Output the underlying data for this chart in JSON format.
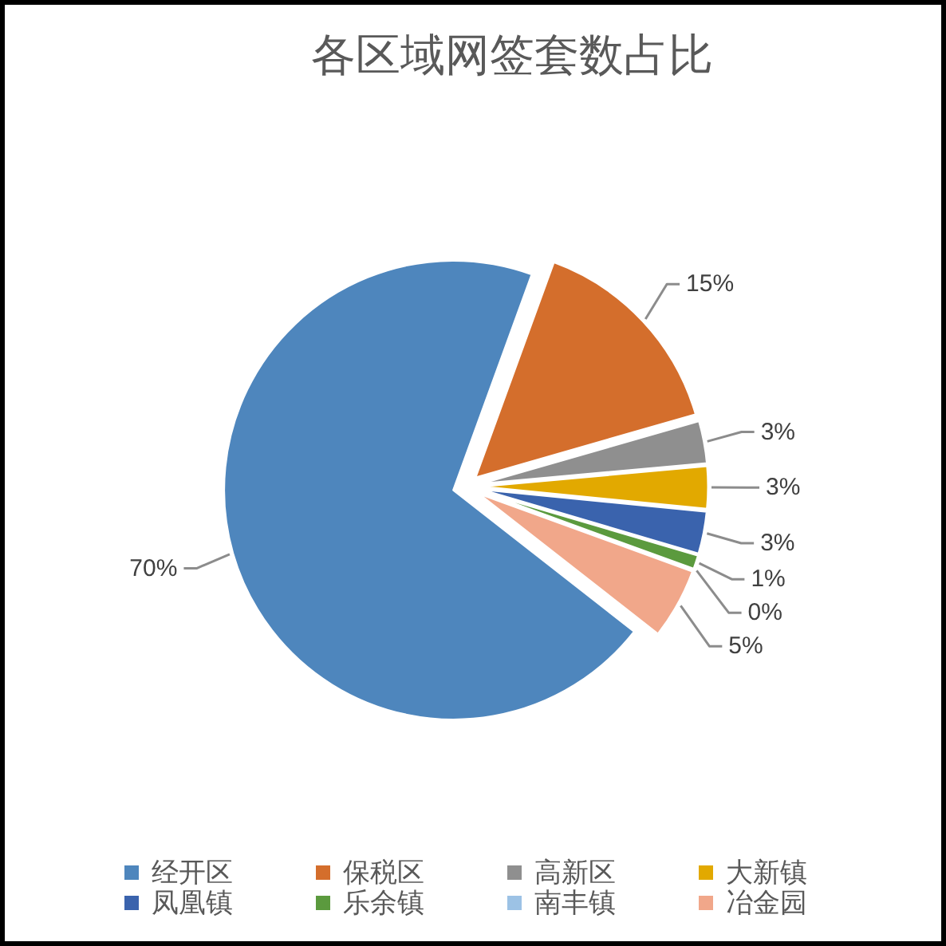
{
  "chart_data": {
    "type": "pie",
    "title": "各区域网签套数占比",
    "categories": [
      "经开区",
      "保税区",
      "高新区",
      "大新镇",
      "凤凰镇",
      "乐余镇",
      "南丰镇",
      "冶金园"
    ],
    "values": [
      70,
      15,
      3,
      3,
      3,
      1,
      0,
      5
    ],
    "value_labels": [
      "70%",
      "15%",
      "3%",
      "3%",
      "3%",
      "1%",
      "0%",
      "5%"
    ],
    "colors": [
      "#4e86bd",
      "#d46e2c",
      "#8f8f8f",
      "#e2a900",
      "#3a63ad",
      "#5b9a3e",
      "#9cc2e5",
      "#f1a78a"
    ],
    "legend": "bottom"
  }
}
